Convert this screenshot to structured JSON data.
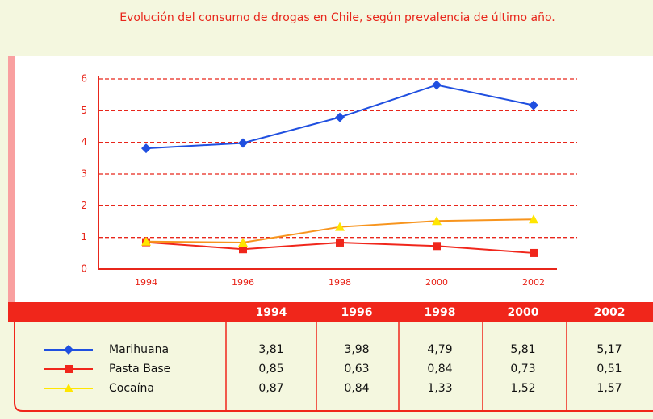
{
  "chart_data": {
    "type": "line",
    "title": "Evolución del consumo de drogas en Chile, según prevalencia de último año.",
    "categories": [
      "1994",
      "1996",
      "1998",
      "2000",
      "2002"
    ],
    "series": [
      {
        "name": "Marihuana",
        "color": "#1f4fe0",
        "marker": "diamond",
        "values": [
          3.81,
          3.98,
          4.79,
          5.81,
          5.17
        ],
        "value_labels": [
          "3,81",
          "3,98",
          "4,79",
          "5,81",
          "5,17"
        ]
      },
      {
        "name": "Pasta Base",
        "color": "#f0261b",
        "marker": "square",
        "values": [
          0.85,
          0.63,
          0.84,
          0.73,
          0.51
        ],
        "value_labels": [
          "0,85",
          "0,63",
          "0,84",
          "0,73",
          "0,51"
        ]
      },
      {
        "name": "Cocaína",
        "color": "#f7941d",
        "marker_color": "#ffe600",
        "marker": "triangle",
        "values": [
          0.87,
          0.84,
          1.33,
          1.52,
          1.57
        ],
        "value_labels": [
          "0,87",
          "0,84",
          "1,33",
          "1,52",
          "1,57"
        ]
      }
    ],
    "ylim": [
      0,
      6
    ],
    "yticks": [
      0,
      1,
      2,
      3,
      4,
      5,
      6
    ],
    "grid": true
  }
}
